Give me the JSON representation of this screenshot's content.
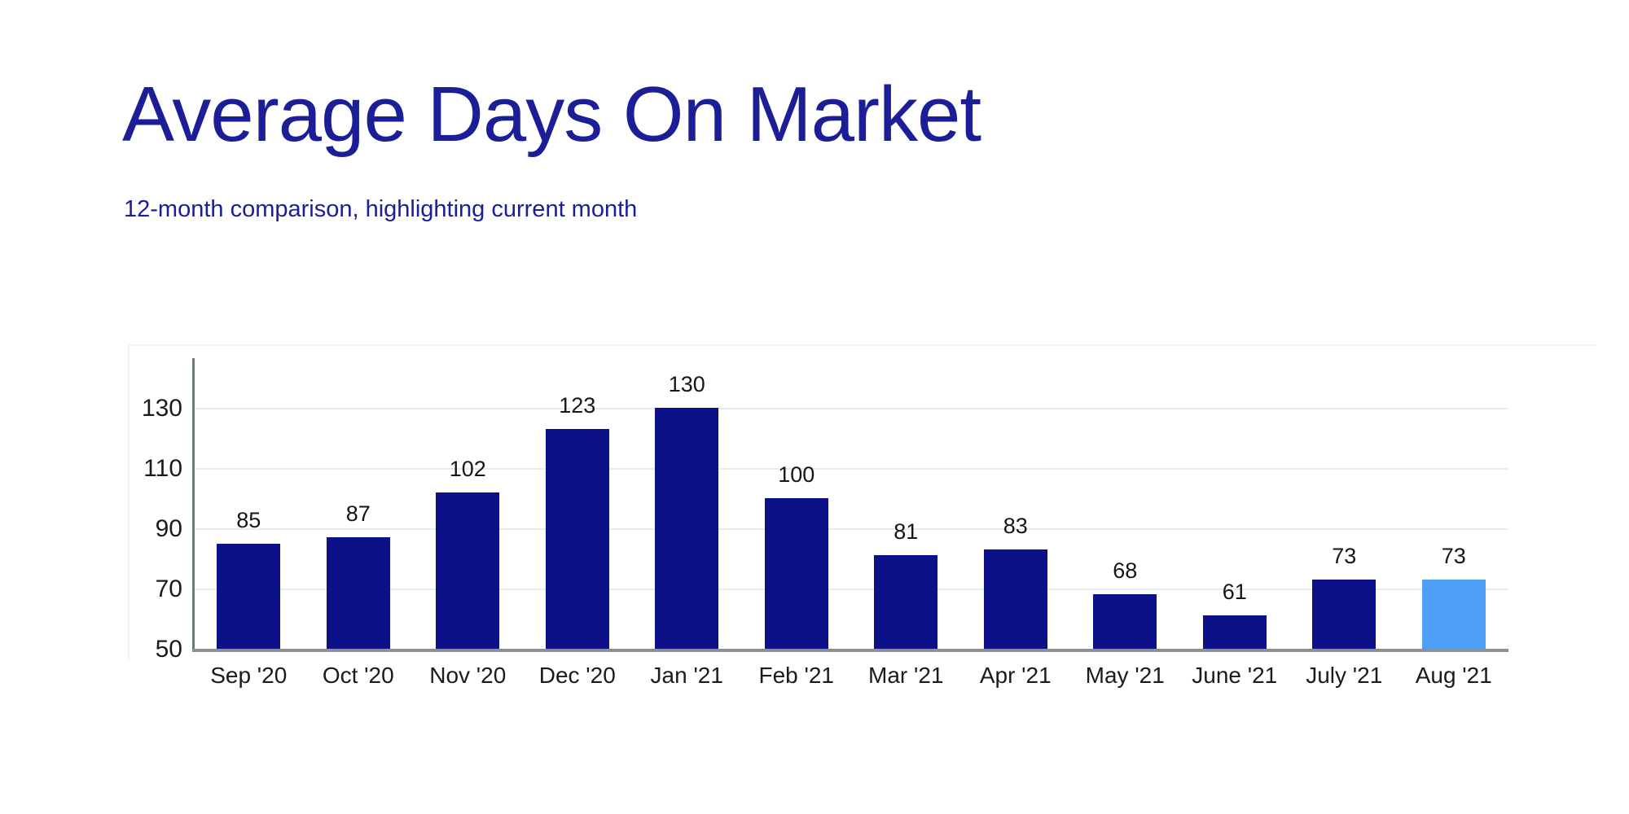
{
  "page": {
    "background": "#ffffff"
  },
  "header": {
    "title": "Average Days On Market",
    "subtitle": "12-month comparison, highlighting current month",
    "title_color": "#1b1e96"
  },
  "chart_data": {
    "type": "bar",
    "title": "Average Days On Market",
    "subtitle": "12-month comparison, highlighting current month",
    "categories": [
      "Sep '20",
      "Oct '20",
      "Nov '20",
      "Dec '20",
      "Jan '21",
      "Feb '21",
      "Mar '21",
      "Apr '21",
      "May '21",
      "June '21",
      "July '21",
      "Aug '21"
    ],
    "values": [
      85,
      87,
      102,
      123,
      130,
      100,
      81,
      83,
      68,
      61,
      73,
      73
    ],
    "highlighted_index": 11,
    "highlighted_category": "Aug '21",
    "xlabel": "",
    "ylabel": "",
    "y_ticks": [
      130,
      110,
      90,
      70,
      50
    ],
    "ylim": [
      50,
      147
    ],
    "grid": true,
    "legend": "none",
    "bar_color": "#0d1189",
    "highlight_color": "#4da0f5",
    "y_axis_color": "#6e7a7e",
    "x_axis_color": "#8c9090",
    "gridline_color": "#e5ecf4",
    "value_label_color": "#161616",
    "tick_label_color": "#1b1b1b"
  }
}
